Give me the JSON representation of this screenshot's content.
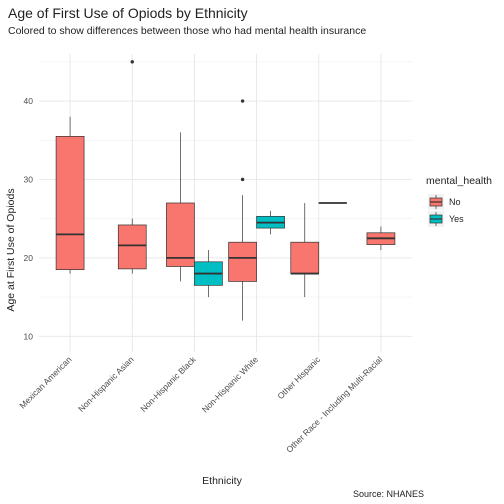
{
  "chart_data": {
    "type": "boxplot",
    "title": "Age of First Use of Opiods by Ethnicity",
    "subtitle": "Colored to show differences between those who had mental health insurance",
    "xlabel": "Ethnicity",
    "ylabel": "Age at First Use of Opiods",
    "caption": "Source: NHANES",
    "ylim": [
      8,
      46
    ],
    "yticks": [
      10,
      20,
      30,
      40
    ],
    "grid": true,
    "legend": {
      "title": "mental_health",
      "position": "right",
      "entries": [
        {
          "label": "No",
          "color": "#F8766D"
        },
        {
          "label": "Yes",
          "color": "#00BFC4"
        }
      ]
    },
    "categories": [
      "Mexican American",
      "Non-Hispanic Asian",
      "Non-Hispanic Black",
      "Non-Hispanic White",
      "Other Hispanic",
      "Other Race - Including Multi-Racial"
    ],
    "series": [
      {
        "name": "No",
        "boxes": [
          {
            "category": 0,
            "min": 18,
            "q1": 18.5,
            "median": 23,
            "q3": 35.5,
            "max": 38,
            "outliers": []
          },
          {
            "category": 1,
            "min": 18,
            "q1": 18.6,
            "median": 21.6,
            "q3": 24.2,
            "max": 25,
            "outliers": [
              45
            ]
          },
          {
            "category": 2,
            "min": 17,
            "q1": 18.9,
            "median": 20,
            "q3": 27,
            "max": 36,
            "outliers": []
          },
          {
            "category": 3,
            "min": 12,
            "q1": 17,
            "median": 20,
            "q3": 22,
            "max": 28,
            "outliers": [
              30,
              40
            ]
          },
          {
            "category": 4,
            "min": 15,
            "q1": 18,
            "median": 18,
            "q3": 22,
            "max": 27,
            "outliers": []
          },
          {
            "category": 5,
            "min": 21,
            "q1": 21.7,
            "median": 22.5,
            "q3": 23.2,
            "max": 24,
            "outliers": [],
            "solo": true
          }
        ]
      },
      {
        "name": "Yes",
        "boxes": [
          {
            "category": 2,
            "min": 15,
            "q1": 16.5,
            "median": 18,
            "q3": 19.5,
            "max": 21,
            "outliers": []
          },
          {
            "category": 3,
            "min": 23,
            "q1": 23.8,
            "median": 24.5,
            "q3": 25.3,
            "max": 26,
            "outliers": []
          },
          {
            "category": 4,
            "min": 27,
            "q1": 27,
            "median": 27,
            "q3": 27,
            "max": 27,
            "outliers": []
          }
        ]
      }
    ]
  }
}
